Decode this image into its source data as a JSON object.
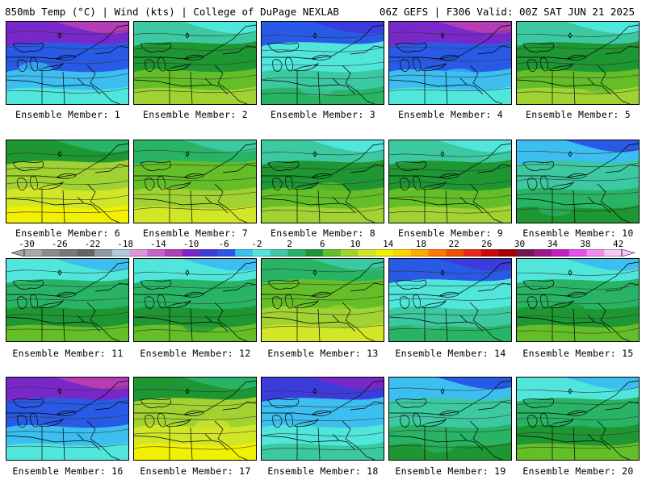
{
  "header": {
    "left": "850mb Temp (°C) | Wind (kts) | College of DuPage NEXLAB",
    "right": "06Z GEFS | F306 Valid: 00Z SAT JUN 21 2025"
  },
  "colorbar": {
    "ticks": [
      "-30",
      "-26",
      "-22",
      "-18",
      "-14",
      "-10",
      "-6",
      "-2",
      "2",
      "6",
      "10",
      "14",
      "18",
      "22",
      "26",
      "30",
      "34",
      "38",
      "42"
    ],
    "colors": [
      "#a8a8a8",
      "#8c8c8c",
      "#787878",
      "#646464",
      "#8c9aa8",
      "#b4c8dc",
      "#dc96dc",
      "#c864c8",
      "#b43cb4",
      "#7828c8",
      "#3c3cdc",
      "#285ae6",
      "#3cbef0",
      "#50e6dc",
      "#3cc8a0",
      "#28b464",
      "#1e9632",
      "#64be28",
      "#a0d232",
      "#d2e628",
      "#f0f000",
      "#ffd200",
      "#ffaa00",
      "#ff7800",
      "#f05000",
      "#e62814",
      "#c80a0a",
      "#a00000",
      "#781450",
      "#a0148c",
      "#c81ec8",
      "#e650e6",
      "#f08cf0",
      "#f5c8f5"
    ]
  },
  "panels": [
    {
      "label": "Ensemble Member: 1",
      "level": 11
    },
    {
      "label": "Ensemble Member: 2",
      "level": 16
    },
    {
      "label": "Ensemble Member: 3",
      "level": 13
    },
    {
      "label": "Ensemble Member: 4",
      "level": 11
    },
    {
      "label": "Ensemble Member: 5",
      "level": 16
    },
    {
      "label": "Ensemble Member: 6",
      "level": 18
    },
    {
      "label": "Ensemble Member: 7",
      "level": 17
    },
    {
      "label": "Ensemble Member: 8",
      "level": 16
    },
    {
      "label": "Ensemble Member: 9",
      "level": 16
    },
    {
      "label": "Ensemble Member: 10",
      "level": 14
    },
    {
      "label": "Ensemble Member: 11",
      "level": 15
    },
    {
      "label": "Ensemble Member: 12",
      "level": 15
    },
    {
      "label": "Ensemble Member: 13",
      "level": 17
    },
    {
      "label": "Ensemble Member: 14",
      "level": 13
    },
    {
      "label": "Ensemble Member: 15",
      "level": 15
    },
    {
      "label": "Ensemble Member: 16",
      "level": 11
    },
    {
      "label": "Ensemble Member: 17",
      "level": 18
    },
    {
      "label": "Ensemble Member: 18",
      "level": 12
    },
    {
      "label": "Ensemble Member: 19",
      "level": 14
    },
    {
      "label": "Ensemble Member: 20",
      "level": 15
    }
  ]
}
